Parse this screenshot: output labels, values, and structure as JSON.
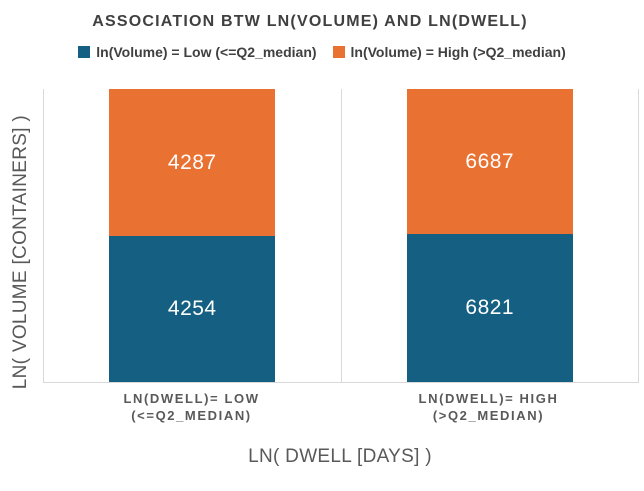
{
  "chart": {
    "title": "ASSOCIATION BTW LN(VOLUME) AND LN(DWELL)"
  },
  "chart_data": {
    "type": "bar",
    "subtype": "100%-stacked-column",
    "title": "ASSOCIATION BTW LN(VOLUME) AND LN(DWELL)",
    "xlabel": "LN( DWELL [DAYS] )",
    "ylabel": "LN( VOLUME [CONTAINERS] )",
    "categories": [
      "LN(DWELL)= LOW\n(<=Q2_MEDIAN)",
      "LN(DWELL)= HIGH\n(>Q2_MEDIAN)"
    ],
    "series": [
      {
        "name": "ln(Volume) = Low (<=Q2_median)",
        "color": "#156082",
        "values": [
          4254,
          6821
        ]
      },
      {
        "name": "ln(Volume) = High (>Q2_median)",
        "color": "#E97132",
        "values": [
          4287,
          6687
        ]
      }
    ],
    "data_labels": true,
    "data_label_color": "#ffffff",
    "legend_position": "top",
    "gridlines": "vertical category separators only",
    "axis_line_color": "#d9d9d9",
    "text_color_title": "#404040",
    "text_color_axis": "#595959",
    "y_tick_labels": "none"
  }
}
